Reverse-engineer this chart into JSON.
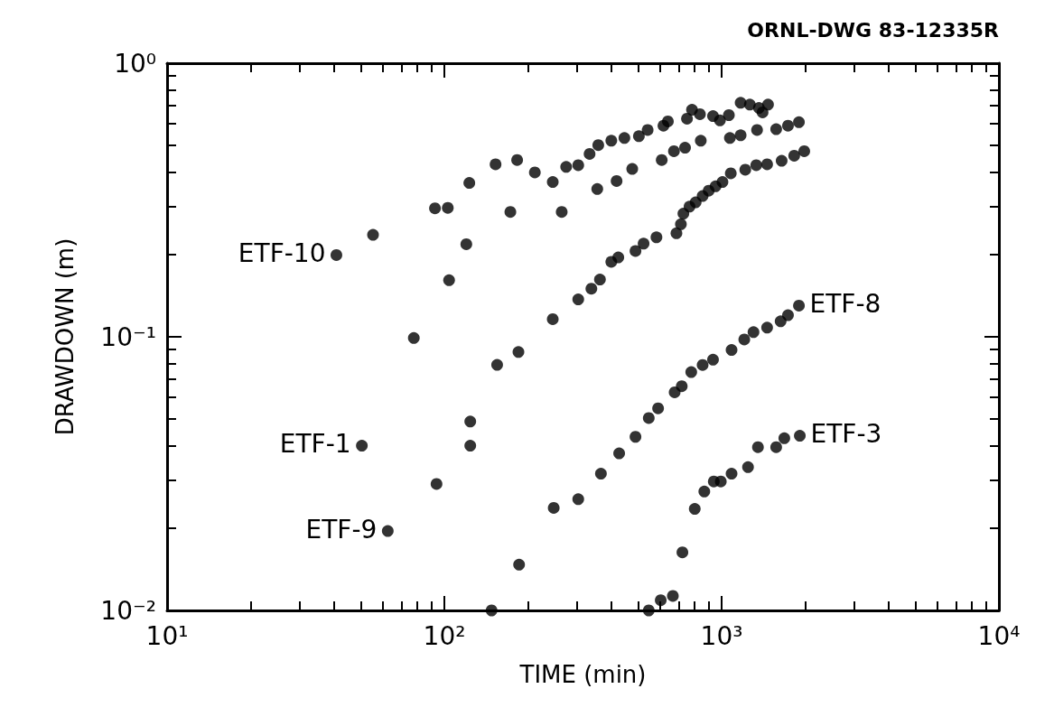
{
  "chart_data": {
    "type": "scatter",
    "xlabel": "TIME (min)",
    "ylabel": "DRAWDOWN (m)",
    "log": "xy",
    "grid": false,
    "marker": "circle",
    "xlim": [
      10,
      10000
    ],
    "xticks": [
      {
        "value": 10,
        "label": "10¹"
      },
      {
        "value": 100,
        "label": "10²"
      },
      {
        "value": 1000,
        "label": "10³"
      },
      {
        "value": 10000,
        "label": "10⁴"
      }
    ],
    "ylim": [
      0.01,
      1
    ],
    "yticks": [
      {
        "value": 0.01,
        "label": "10⁻²"
      },
      {
        "value": 0.1,
        "label": "10⁻¹"
      },
      {
        "value": 1,
        "label": "10⁰"
      }
    ],
    "series": [
      {
        "color": "#000000",
        "x": [
          40.8,
          55.3,
          92.5,
          102.9,
          123,
          153,
          183,
          212,
          246,
          275,
          304,
          334,
          359,
          400,
          446,
          503,
          541,
          617,
          640,
          750,
          782,
          835,
          931,
          986,
          1062,
          1171,
          1264,
          1363,
          1405,
          1470
        ],
        "values": [
          0.199,
          0.236,
          0.295,
          0.296,
          0.365,
          0.427,
          0.443,
          0.399,
          0.368,
          0.418,
          0.424,
          0.466,
          0.502,
          0.521,
          0.533,
          0.541,
          0.57,
          0.591,
          0.613,
          0.627,
          0.676,
          0.651,
          0.641,
          0.618,
          0.646,
          0.717,
          0.706,
          0.686,
          0.661,
          0.706
        ]
      },
      {
        "color": "#000000",
        "x": [
          50.4,
          77.6,
          104,
          120,
          173,
          265,
          356,
          418,
          476,
          608,
          673,
          738,
          841,
          1071,
          1171,
          1342,
          1573,
          1735,
          1900
        ],
        "values": [
          0.04,
          0.099,
          0.161,
          0.218,
          0.286,
          0.286,
          0.347,
          0.371,
          0.411,
          0.443,
          0.477,
          0.491,
          0.521,
          0.533,
          0.545,
          0.57,
          0.574,
          0.591,
          0.609
        ]
      },
      {
        "color": "#000000",
        "x": [
          62.5,
          93.7,
          124,
          124,
          155,
          185,
          246,
          304,
          339,
          364,
          400,
          424,
          489,
          523,
          582,
          687,
          713,
          728,
          766,
          806,
          854,
          898,
          951,
          1007,
          1079,
          1217,
          1333,
          1459,
          1646,
          1827,
          1986
        ],
        "values": [
          0.0195,
          0.029,
          0.04,
          0.049,
          0.079,
          0.088,
          0.116,
          0.137,
          0.15,
          0.162,
          0.188,
          0.195,
          0.206,
          0.219,
          0.231,
          0.239,
          0.258,
          0.282,
          0.299,
          0.31,
          0.327,
          0.342,
          0.355,
          0.368,
          0.396,
          0.408,
          0.424,
          0.427,
          0.44,
          0.459,
          0.477
        ]
      },
      {
        "color": "#000000",
        "x": [
          148,
          186,
          248,
          304,
          367,
          427,
          489,
          546,
          590,
          677,
          718,
          777,
          854,
          931,
          1086,
          1207,
          1303,
          1459,
          1632,
          1735,
          1900
        ],
        "values": [
          0.01,
          0.0147,
          0.0237,
          0.0255,
          0.0316,
          0.0375,
          0.0431,
          0.0505,
          0.0548,
          0.0627,
          0.066,
          0.0743,
          0.0789,
          0.0825,
          0.0895,
          0.0978,
          0.104,
          0.108,
          0.114,
          0.12,
          0.13
        ]
      },
      {
        "color": "#000000",
        "x": [
          546,
          603,
          667,
          722,
          800,
          866,
          937,
          993,
          1086,
          1245,
          1352,
          1573,
          1683,
          1914
        ],
        "values": [
          0.01,
          0.0109,
          0.0113,
          0.0163,
          0.0235,
          0.0272,
          0.0296,
          0.0296,
          0.0316,
          0.0334,
          0.0395,
          0.0395,
          0.0426,
          0.0435
        ]
      }
    ],
    "annotations": [
      "ORNL-DWG 83-12335R",
      {
        "text": "ETF-10",
        "x": 40.8,
        "y": 0.199
      },
      {
        "text": "ETF-1",
        "x": 50.4,
        "y": 0.04
      },
      {
        "text": "ETF-9",
        "x": 62.5,
        "y": 0.0195
      },
      {
        "text": "ETF-8",
        "x": 1900,
        "y": 0.13
      },
      {
        "text": "ETF-3",
        "x": 1914,
        "y": 0.0435
      }
    ]
  }
}
